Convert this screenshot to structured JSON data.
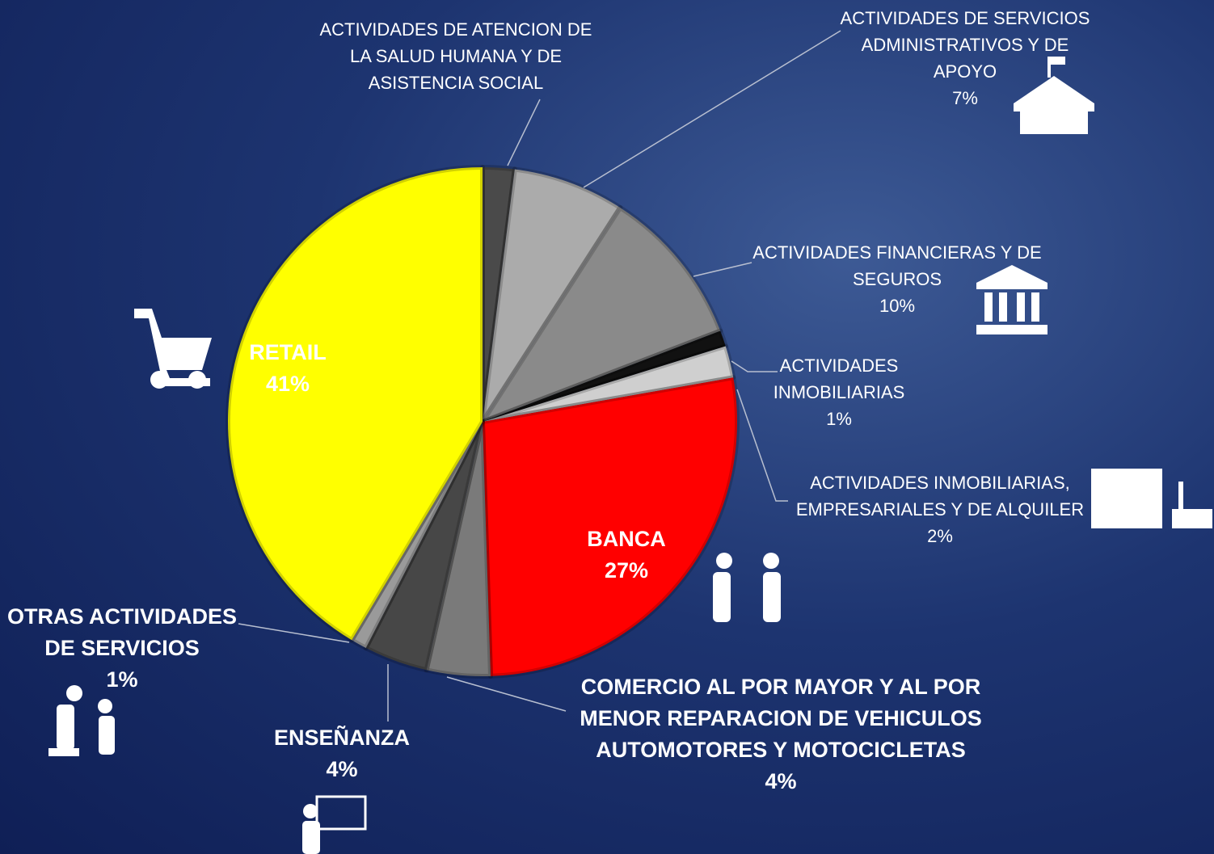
{
  "chart_data": {
    "type": "pie",
    "categories": [
      "ACTIVIDADES DE ATENCION DE LA SALUD HUMANA Y DE ASISTENCIA SOCIAL",
      "ACTIVIDADES DE SERVICIOS ADMINISTRATIVOS Y DE APOYO",
      "ACTIVIDADES FINANCIERAS Y DE SEGUROS",
      "ACTIVIDADES INMOBILIARIAS",
      "ACTIVIDADES INMOBILIARIAS, EMPRESARIALES Y DE ALQUILER",
      "BANCA",
      "COMERCIO AL POR MAYOR Y AL POR MENOR REPARACION DE VEHICULOS AUTOMOTORES Y MOTOCICLETAS",
      "ENSEÑANZA",
      "OTRAS ACTIVIDADES DE SERVICIOS",
      "RETAIL"
    ],
    "values": [
      2,
      7,
      10,
      1,
      2,
      27,
      4,
      4,
      1,
      41
    ],
    "value_labels": [
      null,
      "7%",
      "10%",
      "1%",
      "2%",
      "27%",
      "4%",
      "4%",
      "1%",
      "41%"
    ],
    "colors": [
      "#4a4a4a",
      "#ababab",
      "#8a8a8a",
      "#111111",
      "#cfcfcf",
      "#ff0000",
      "#7a7a7a",
      "#474747",
      "#9a9a9a",
      "#ffff00"
    ]
  }
}
